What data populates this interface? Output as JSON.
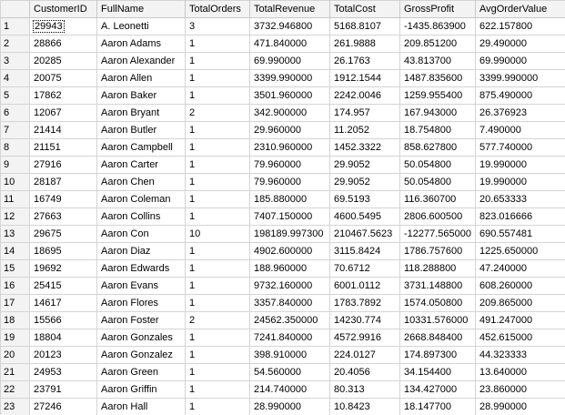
{
  "grid": {
    "columns": [
      "",
      "CustomerID",
      "FullName",
      "TotalOrders",
      "TotalRevenue",
      "TotalCost",
      "GrossProfit",
      "AvgOrderValue"
    ],
    "rows": [
      [
        "1",
        "29943",
        "A. Leonetti",
        "3",
        "3732.946800",
        "5168.8107",
        "-1435.863900",
        "622.157800"
      ],
      [
        "2",
        "28866",
        "Aaron Adams",
        "1",
        "471.840000",
        "261.9888",
        "209.851200",
        "29.490000"
      ],
      [
        "3",
        "20285",
        "Aaron Alexander",
        "1",
        "69.990000",
        "26.1763",
        "43.813700",
        "69.990000"
      ],
      [
        "4",
        "20075",
        "Aaron Allen",
        "1",
        "3399.990000",
        "1912.1544",
        "1487.835600",
        "3399.990000"
      ],
      [
        "5",
        "17862",
        "Aaron Baker",
        "1",
        "3501.960000",
        "2242.0046",
        "1259.955400",
        "875.490000"
      ],
      [
        "6",
        "12067",
        "Aaron Bryant",
        "2",
        "342.900000",
        "174.957",
        "167.943000",
        "26.376923"
      ],
      [
        "7",
        "21414",
        "Aaron Butler",
        "1",
        "29.960000",
        "11.2052",
        "18.754800",
        "7.490000"
      ],
      [
        "8",
        "21151",
        "Aaron Campbell",
        "1",
        "2310.960000",
        "1452.3322",
        "858.627800",
        "577.740000"
      ],
      [
        "9",
        "27916",
        "Aaron Carter",
        "1",
        "79.960000",
        "29.9052",
        "50.054800",
        "19.990000"
      ],
      [
        "10",
        "28187",
        "Aaron Chen",
        "1",
        "79.960000",
        "29.9052",
        "50.054800",
        "19.990000"
      ],
      [
        "11",
        "16749",
        "Aaron Coleman",
        "1",
        "185.880000",
        "69.5193",
        "116.360700",
        "20.653333"
      ],
      [
        "12",
        "27663",
        "Aaron Collins",
        "1",
        "7407.150000",
        "4600.5495",
        "2806.600500",
        "823.016666"
      ],
      [
        "13",
        "29675",
        "Aaron Con",
        "10",
        "198189.997300",
        "210467.5623",
        "-12277.565000",
        "690.557481"
      ],
      [
        "14",
        "18695",
        "Aaron Diaz",
        "1",
        "4902.600000",
        "3115.8424",
        "1786.757600",
        "1225.650000"
      ],
      [
        "15",
        "19692",
        "Aaron Edwards",
        "1",
        "188.960000",
        "70.6712",
        "118.288800",
        "47.240000"
      ],
      [
        "16",
        "25415",
        "Aaron Evans",
        "1",
        "9732.160000",
        "6001.0112",
        "3731.148800",
        "608.260000"
      ],
      [
        "17",
        "14617",
        "Aaron Flores",
        "1",
        "3357.840000",
        "1783.7892",
        "1574.050800",
        "209.865000"
      ],
      [
        "18",
        "15566",
        "Aaron Foster",
        "2",
        "24562.350000",
        "14230.774",
        "10331.576000",
        "491.247000"
      ],
      [
        "19",
        "18804",
        "Aaron Gonzales",
        "1",
        "7241.840000",
        "4572.9916",
        "2668.848400",
        "452.615000"
      ],
      [
        "20",
        "20123",
        "Aaron Gonzalez",
        "1",
        "398.910000",
        "224.0127",
        "174.897300",
        "44.323333"
      ],
      [
        "21",
        "24953",
        "Aaron Green",
        "1",
        "54.560000",
        "20.4056",
        "34.154400",
        "13.640000"
      ],
      [
        "22",
        "23791",
        "Aaron Griffin",
        "1",
        "214.740000",
        "80.313",
        "134.427000",
        "23.860000"
      ],
      [
        "23",
        "27246",
        "Aaron Hall",
        "1",
        "28.990000",
        "10.8423",
        "18.147700",
        "28.990000"
      ]
    ]
  }
}
